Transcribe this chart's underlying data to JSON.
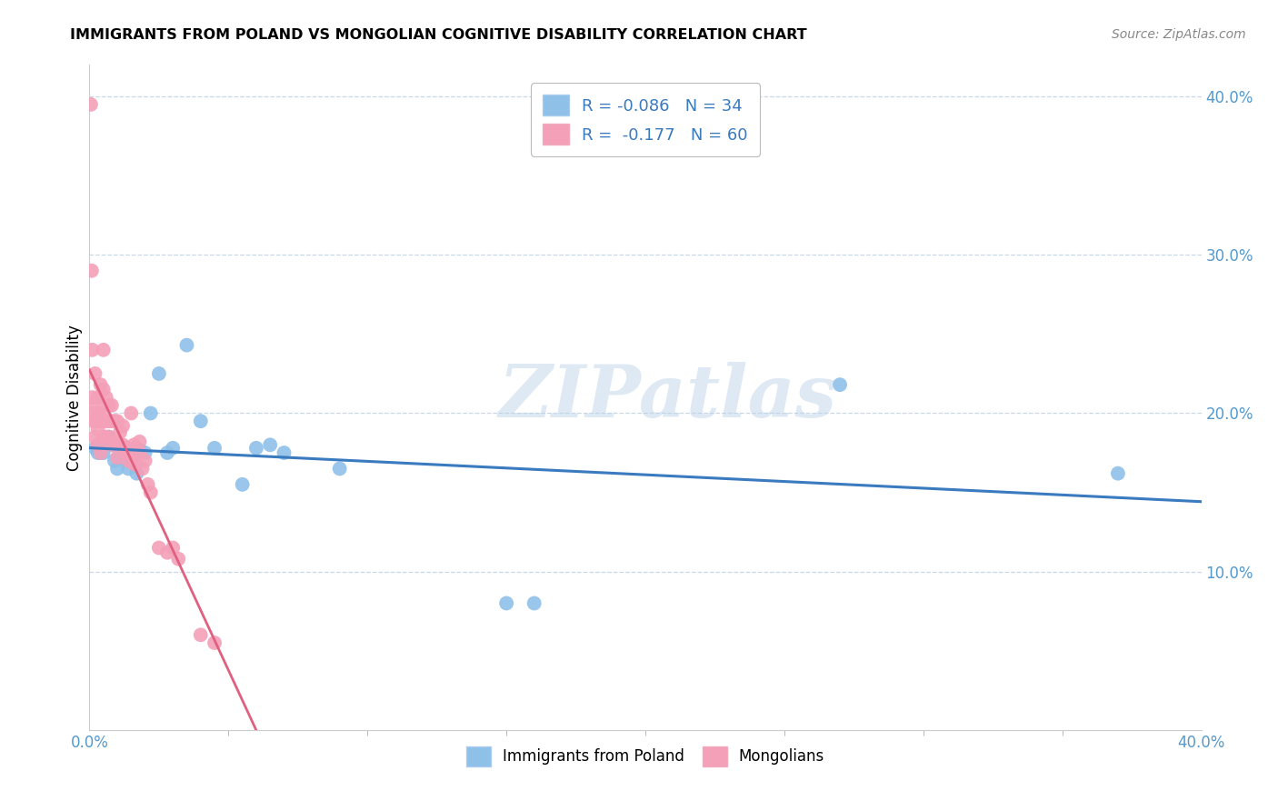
{
  "title": "IMMIGRANTS FROM POLAND VS MONGOLIAN COGNITIVE DISABILITY CORRELATION CHART",
  "source": "Source: ZipAtlas.com",
  "ylabel": "Cognitive Disability",
  "xlim": [
    0.0,
    0.4
  ],
  "ylim": [
    0.0,
    0.42
  ],
  "poland_scatter_color": "#8ec0e8",
  "mongolia_scatter_color": "#f4a0b8",
  "poland_line_color": "#3a7abf",
  "mongolia_line_color": "#e06080",
  "legend_R_poland": "R = -0.086",
  "legend_N_poland": "N = 34",
  "legend_R_mongolia": "R =  -0.177",
  "legend_N_mongolia": "N = 60",
  "watermark": "ZIPatlas",
  "tick_color": "#5599cc",
  "poland_x": [
    0.002,
    0.003,
    0.004,
    0.005,
    0.006,
    0.007,
    0.008,
    0.009,
    0.01,
    0.011,
    0.012,
    0.013,
    0.014,
    0.015,
    0.016,
    0.017,
    0.018,
    0.02,
    0.022,
    0.025,
    0.028,
    0.03,
    0.035,
    0.04,
    0.045,
    0.055,
    0.06,
    0.065,
    0.07,
    0.09,
    0.15,
    0.16,
    0.27,
    0.37
  ],
  "poland_y": [
    0.178,
    0.175,
    0.175,
    0.175,
    0.182,
    0.185,
    0.18,
    0.17,
    0.165,
    0.175,
    0.175,
    0.17,
    0.165,
    0.172,
    0.168,
    0.162,
    0.177,
    0.175,
    0.2,
    0.225,
    0.175,
    0.178,
    0.243,
    0.195,
    0.178,
    0.155,
    0.178,
    0.18,
    0.175,
    0.165,
    0.08,
    0.08,
    0.218,
    0.162
  ],
  "mongolia_x": [
    0.0005,
    0.0008,
    0.001,
    0.001,
    0.001,
    0.0015,
    0.002,
    0.002,
    0.002,
    0.0025,
    0.003,
    0.003,
    0.003,
    0.003,
    0.004,
    0.004,
    0.004,
    0.004,
    0.005,
    0.005,
    0.005,
    0.005,
    0.006,
    0.006,
    0.006,
    0.007,
    0.007,
    0.007,
    0.008,
    0.008,
    0.008,
    0.009,
    0.009,
    0.01,
    0.01,
    0.01,
    0.011,
    0.012,
    0.012,
    0.013,
    0.013,
    0.014,
    0.014,
    0.015,
    0.015,
    0.016,
    0.016,
    0.017,
    0.018,
    0.018,
    0.019,
    0.02,
    0.021,
    0.022,
    0.025,
    0.028,
    0.03,
    0.032,
    0.04,
    0.045
  ],
  "mongolia_y": [
    0.395,
    0.29,
    0.24,
    0.21,
    0.2,
    0.195,
    0.225,
    0.205,
    0.185,
    0.195,
    0.21,
    0.2,
    0.19,
    0.18,
    0.218,
    0.2,
    0.195,
    0.175,
    0.24,
    0.215,
    0.195,
    0.185,
    0.21,
    0.195,
    0.185,
    0.205,
    0.195,
    0.185,
    0.205,
    0.195,
    0.18,
    0.195,
    0.182,
    0.195,
    0.182,
    0.172,
    0.188,
    0.192,
    0.18,
    0.178,
    0.175,
    0.178,
    0.17,
    0.2,
    0.175,
    0.18,
    0.168,
    0.168,
    0.182,
    0.175,
    0.165,
    0.17,
    0.155,
    0.15,
    0.115,
    0.112,
    0.115,
    0.108,
    0.06,
    0.055
  ]
}
